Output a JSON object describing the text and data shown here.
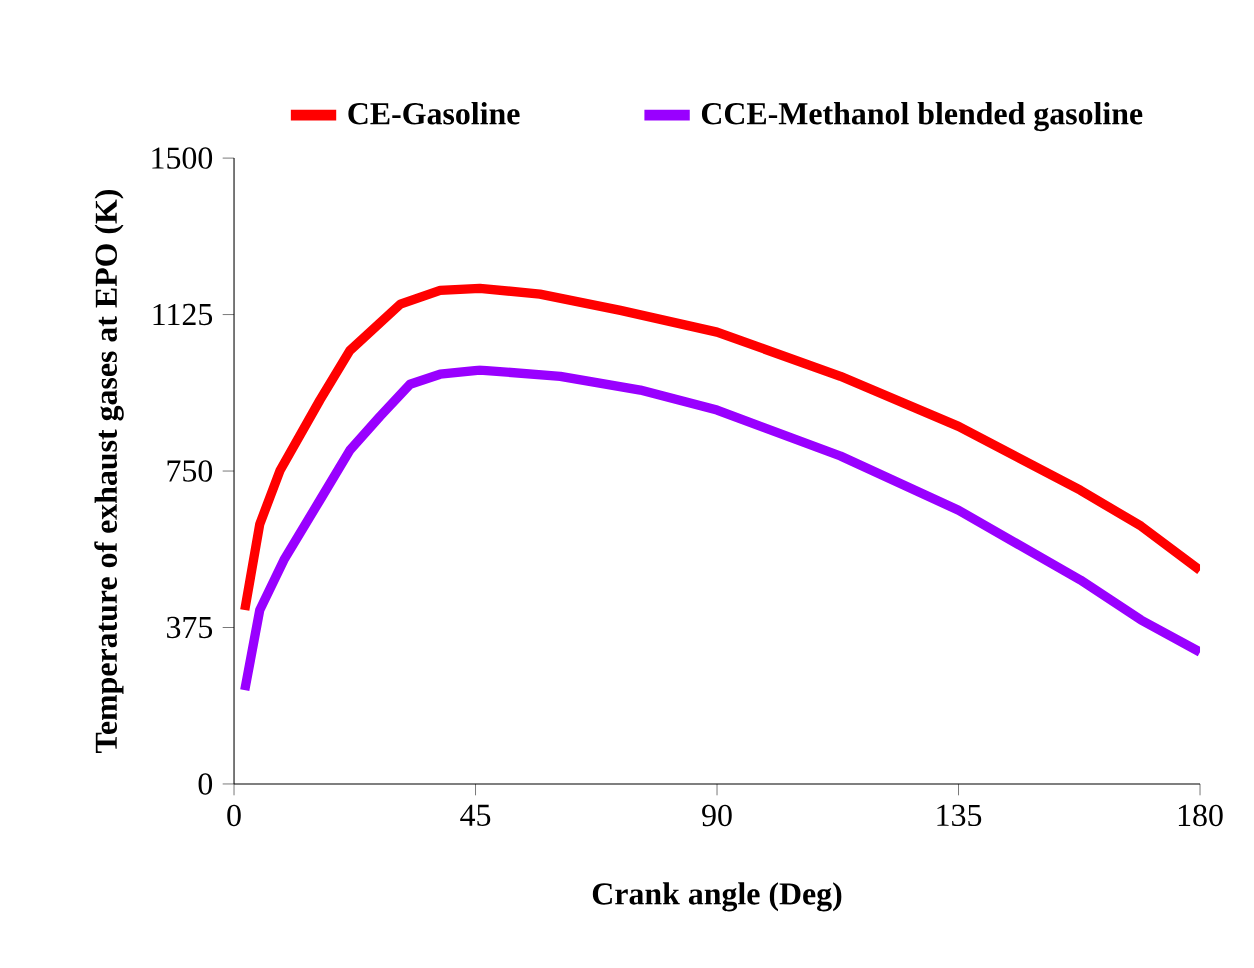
{
  "chart_data": {
    "type": "line",
    "xlabel": "Crank angle (Deg)",
    "ylabel": "Temperature of exhaust gases at EPO  (K)",
    "xlim": [
      0,
      180
    ],
    "xticks": [
      0,
      45,
      90,
      135,
      180
    ],
    "ylim": [
      0,
      1500
    ],
    "yticks": [
      0,
      375,
      750,
      1125,
      1500
    ],
    "legend": "top",
    "grid": false,
    "marker": "none",
    "line_style": "solid",
    "series": [
      {
        "name": "CE-Gasoline",
        "color": "#ff0000",
        "x": [
          2,
          4.8,
          8.6,
          16,
          21.6,
          31,
          38.4,
          45.8,
          57,
          72,
          90,
          113,
          135,
          157.7,
          169,
          180
        ],
        "values": [
          417,
          623,
          752,
          920,
          1039,
          1150,
          1183,
          1188,
          1174,
          1135,
          1083,
          977,
          857,
          704,
          618,
          512
        ]
      },
      {
        "name": "CCE-Methanol blended gasoline",
        "color": "#9900ff",
        "x": [
          2,
          4.8,
          9.3,
          16,
          21.6,
          27.2,
          32.8,
          38.4,
          45.8,
          60.8,
          75.7,
          90,
          113,
          135,
          157.7,
          169,
          180
        ],
        "values": [
          225,
          417,
          537,
          680,
          800,
          881,
          958,
          982,
          992,
          977,
          944,
          896,
          786,
          656,
          489,
          393,
          316
        ]
      }
    ]
  }
}
